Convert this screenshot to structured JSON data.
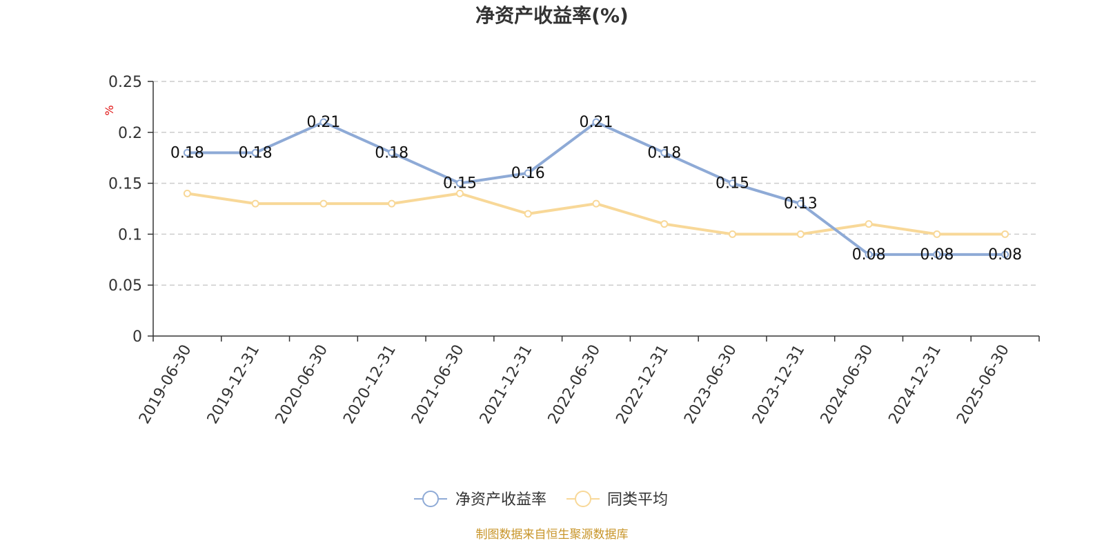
{
  "chart_data": {
    "type": "line",
    "title": "净资产收益率(%)",
    "ylabel": "%",
    "categories": [
      "2019-06-30",
      "2019-12-31",
      "2020-06-30",
      "2020-12-31",
      "2021-06-30",
      "2021-12-31",
      "2022-06-30",
      "2022-12-31",
      "2023-06-30",
      "2023-12-31",
      "2024-06-30",
      "2024-12-31",
      "2025-06-30"
    ],
    "yticks": [
      "0",
      "0.05",
      "0.1",
      "0.15",
      "0.2",
      "0.25"
    ],
    "ylim": [
      0,
      0.25
    ],
    "grid": true,
    "legend_position": "bottom",
    "series": [
      {
        "name": "净资产收益率",
        "color": "#8eaad6",
        "values": [
          0.18,
          0.18,
          0.21,
          0.18,
          0.15,
          0.16,
          0.21,
          0.18,
          0.15,
          0.13,
          0.08,
          0.08,
          0.08
        ],
        "labels": [
          "0.18",
          "0.18",
          "0.21",
          "0.18",
          "0.15",
          "0.16",
          "0.21",
          "0.18",
          "0.15",
          "0.13",
          "0.08",
          "0.08",
          "0.08"
        ]
      },
      {
        "name": "同类平均",
        "color": "#f8d898",
        "values": [
          0.14,
          0.13,
          0.13,
          0.13,
          0.14,
          0.12,
          0.13,
          0.11,
          0.1,
          0.1,
          0.11,
          0.1,
          0.1
        ]
      }
    ]
  },
  "source_text": "制图数据来自恒生聚源数据库"
}
